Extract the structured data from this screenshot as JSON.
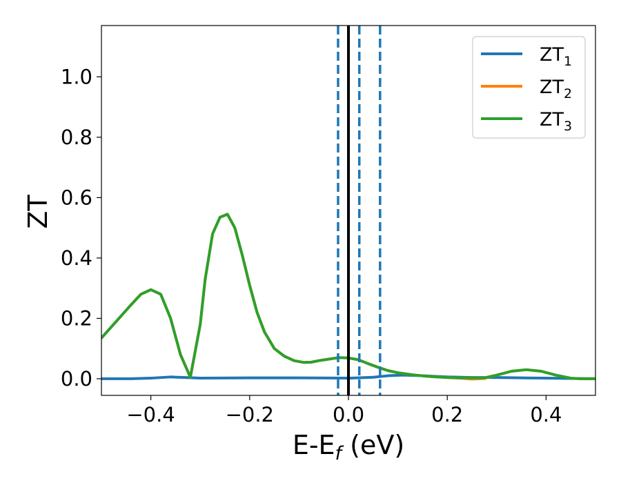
{
  "chart_data": {
    "type": "line",
    "title": "",
    "xlabel_parts": [
      "E-E",
      "f",
      " (eV)"
    ],
    "ylabel": "ZT",
    "xlim": [
      -0.5,
      0.5
    ],
    "ylim": [
      -0.055,
      1.17
    ],
    "x_ticks": [
      -0.4,
      -0.2,
      0.0,
      0.2,
      0.4
    ],
    "x_tick_labels": [
      "−0.4",
      "−0.2",
      "0.0",
      "0.2",
      "0.4"
    ],
    "y_ticks": [
      0.0,
      0.2,
      0.4,
      0.6,
      0.8,
      1.0
    ],
    "y_tick_labels": [
      "0.0",
      "0.2",
      "0.4",
      "0.6",
      "0.8",
      "1.0"
    ],
    "grid": false,
    "legend_position": "top-right",
    "legend": [
      {
        "base": "ZT",
        "sub": "1",
        "color": "#1f77b4"
      },
      {
        "base": "ZT",
        "sub": "2",
        "color": "#ff7f0e"
      },
      {
        "base": "ZT",
        "sub": "3",
        "color": "#2ca02c"
      }
    ],
    "vlines": [
      {
        "x": -0.021,
        "style": "dashed",
        "color": "#1f77b4"
      },
      {
        "x": 0.0,
        "style": "solid",
        "color": "#000000"
      },
      {
        "x": 0.022,
        "style": "dashed",
        "color": "#1f77b4"
      },
      {
        "x": 0.064,
        "style": "dashed",
        "color": "#1f77b4"
      }
    ],
    "series": [
      {
        "name": "ZT_1",
        "color": "#1f77b4",
        "x": [
          -0.5,
          -0.44,
          -0.4,
          -0.36,
          -0.33,
          -0.3,
          -0.2,
          -0.1,
          0.0,
          0.05,
          0.08,
          0.11,
          0.15,
          0.2,
          0.25,
          0.3,
          0.35,
          0.4,
          0.45,
          0.5
        ],
        "y": [
          0.0,
          0.0,
          0.002,
          0.006,
          0.004,
          0.002,
          0.003,
          0.003,
          0.002,
          0.005,
          0.01,
          0.012,
          0.01,
          0.006,
          0.004,
          0.004,
          0.003,
          0.002,
          0.001,
          0.0
        ]
      },
      {
        "name": "ZT_2",
        "color": "#ff7f0e",
        "x": [
          -0.5,
          -0.47,
          -0.44,
          -0.42,
          -0.4,
          -0.38,
          -0.36,
          -0.34,
          -0.32,
          -0.3,
          -0.29,
          -0.275,
          -0.26,
          -0.245,
          -0.23,
          -0.215,
          -0.2,
          -0.185,
          -0.17,
          -0.15,
          -0.13,
          -0.11,
          -0.09,
          -0.075,
          -0.06,
          -0.04,
          -0.02,
          0.0,
          0.02,
          0.04,
          0.06,
          0.08,
          0.1,
          0.13,
          0.16,
          0.2,
          0.225,
          0.25,
          0.275,
          0.3,
          0.33,
          0.36,
          0.39,
          0.42,
          0.45,
          0.47,
          0.5
        ],
        "y": [
          0.135,
          0.19,
          0.245,
          0.28,
          0.295,
          0.28,
          0.2,
          0.08,
          0.005,
          0.18,
          0.33,
          0.48,
          0.535,
          0.545,
          0.5,
          0.41,
          0.31,
          0.22,
          0.155,
          0.1,
          0.075,
          0.06,
          0.054,
          0.055,
          0.06,
          0.065,
          0.07,
          0.069,
          0.063,
          0.05,
          0.038,
          0.027,
          0.02,
          0.013,
          0.008,
          0.004,
          0.002,
          -0.001,
          0.001,
          0.012,
          0.025,
          0.03,
          0.025,
          0.012,
          0.002,
          0.0,
          0.0
        ]
      },
      {
        "name": "ZT_3",
        "color": "#2ca02c",
        "x": [
          -0.5,
          -0.47,
          -0.44,
          -0.42,
          -0.4,
          -0.38,
          -0.36,
          -0.34,
          -0.32,
          -0.3,
          -0.29,
          -0.275,
          -0.26,
          -0.245,
          -0.23,
          -0.215,
          -0.2,
          -0.185,
          -0.17,
          -0.15,
          -0.13,
          -0.11,
          -0.09,
          -0.075,
          -0.06,
          -0.04,
          -0.02,
          0.0,
          0.02,
          0.04,
          0.06,
          0.08,
          0.1,
          0.13,
          0.16,
          0.2,
          0.225,
          0.25,
          0.275,
          0.3,
          0.33,
          0.36,
          0.39,
          0.42,
          0.45,
          0.47,
          0.5
        ],
        "y": [
          0.135,
          0.19,
          0.245,
          0.28,
          0.295,
          0.28,
          0.2,
          0.08,
          0.005,
          0.18,
          0.33,
          0.48,
          0.535,
          0.545,
          0.5,
          0.41,
          0.31,
          0.22,
          0.155,
          0.1,
          0.075,
          0.06,
          0.054,
          0.055,
          0.06,
          0.065,
          0.07,
          0.069,
          0.063,
          0.05,
          0.038,
          0.027,
          0.02,
          0.013,
          0.008,
          0.004,
          0.003,
          0.003,
          0.003,
          0.012,
          0.025,
          0.03,
          0.025,
          0.012,
          0.002,
          0.0,
          0.0
        ]
      }
    ]
  }
}
